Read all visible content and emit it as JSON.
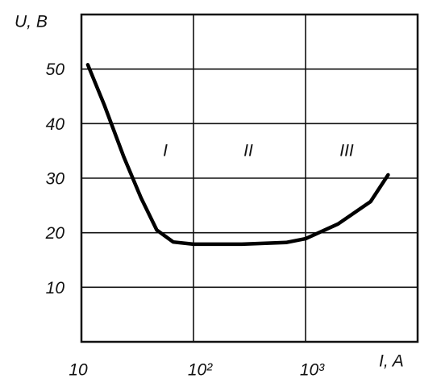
{
  "chart_data": {
    "type": "line",
    "y_label": "U, В",
    "x_label": "I, A",
    "annotations": [
      "I",
      "II",
      "III"
    ],
    "log_x": true,
    "grid": true,
    "color": "#000000",
    "x": [
      11.4,
      16,
      24,
      34,
      47,
      66,
      100,
      270,
      670,
      1000,
      1950,
      3800,
      5450
    ],
    "values": [
      50.8,
      43.4,
      33.8,
      26.4,
      20.5,
      18.3,
      17.9,
      17.9,
      18.2,
      18.9,
      21.6,
      25.7,
      30.6
    ],
    "xlim": [
      10,
      10000
    ],
    "xticks": [
      10,
      {
        "value": 100,
        "label": "10²"
      },
      {
        "value": 1000,
        "label": "10³"
      }
    ],
    "ylim": [
      0,
      60
    ],
    "yticks": [
      10,
      20,
      30,
      40,
      50
    ]
  }
}
